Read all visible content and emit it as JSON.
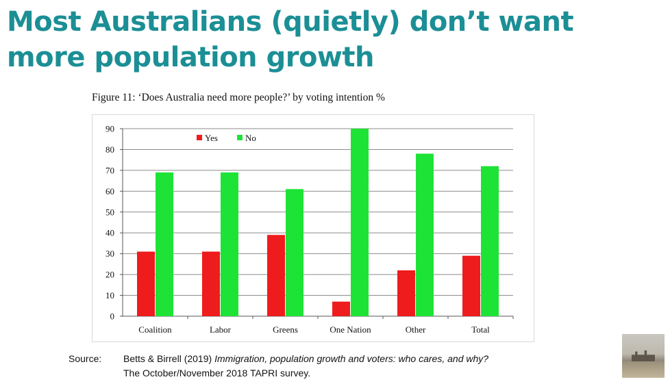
{
  "slide": {
    "title_line1": "Most Australians (quietly) don’t want",
    "title_line2": "more population growth",
    "figure_caption": "Figure 11: ‘Does Australia need more people?’ by voting intention %"
  },
  "source": {
    "label": "Source:",
    "citation_authors": "Betts & Birrell (2019) ",
    "citation_title": "Immigration, population growth and voters: who cares, and why?",
    "line2": "The October/November 2018 TAPRI survey."
  },
  "colors": {
    "title": "#1b8f95",
    "yes": "#ee1c1c",
    "no": "#1ee337",
    "grid": "#8c8c8c"
  },
  "chart_data": {
    "type": "bar",
    "title": "Figure 11: ‘Does Australia need more people?’ by voting intention %",
    "categories": [
      "Coalition",
      "Labor",
      "Greens",
      "One Nation",
      "Other",
      "Total"
    ],
    "series": [
      {
        "name": "Yes",
        "values": [
          31,
          31,
          39,
          7,
          22,
          29
        ]
      },
      {
        "name": "No",
        "values": [
          69,
          69,
          61,
          90,
          78,
          72
        ]
      }
    ],
    "ylim": [
      0,
      90
    ],
    "yticks": [
      0,
      10,
      20,
      30,
      40,
      50,
      60,
      70,
      80,
      90
    ],
    "xlabel": "",
    "ylabel": "",
    "grid": true,
    "legend_position": "top-left"
  }
}
